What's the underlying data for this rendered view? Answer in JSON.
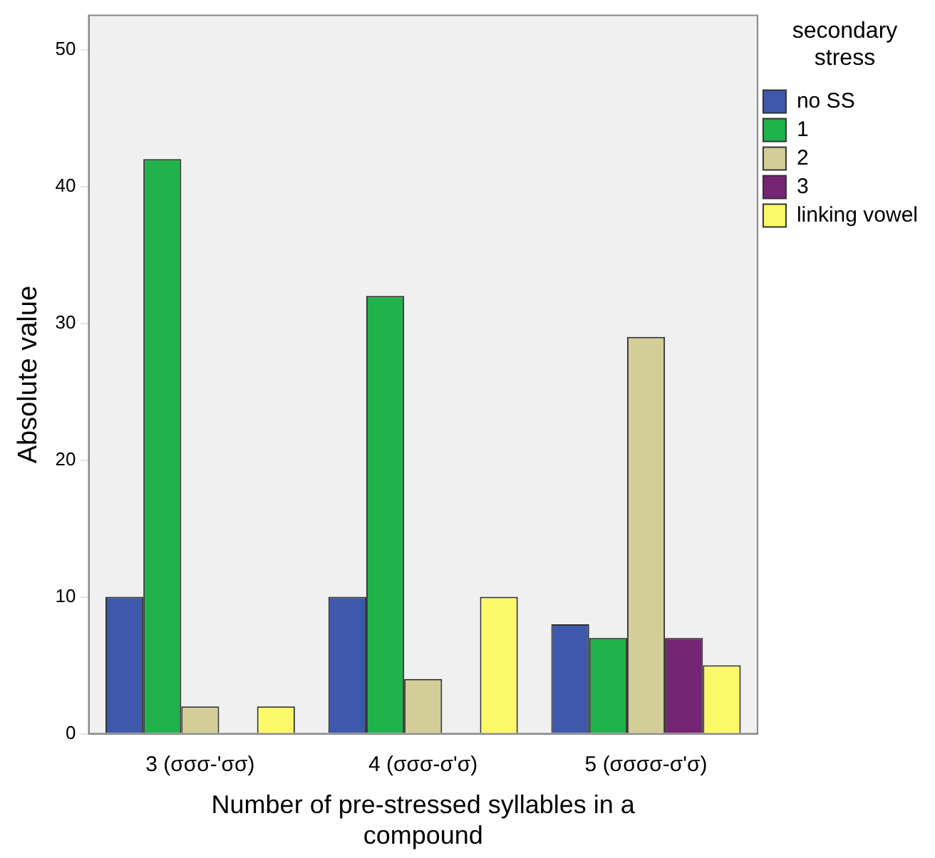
{
  "chart_data": {
    "type": "bar",
    "xlabel": "Number of pre-stressed syllables in a compound",
    "ylabel": "Absolute value",
    "legend_title": "secondary stress",
    "legend": "right",
    "categories": [
      "3 (σσσ-'σσ)",
      "4 (σσσ-σ'σ)",
      "5 (σσσσ-σ'σ)"
    ],
    "series": [
      {
        "name": "no SS",
        "color": "#3e58ac",
        "values": [
          10,
          10,
          8
        ]
      },
      {
        "name": "1",
        "color": "#21b24b",
        "values": [
          42,
          32,
          7
        ]
      },
      {
        "name": "2",
        "color": "#d3ce97",
        "values": [
          2,
          4,
          29
        ]
      },
      {
        "name": "3",
        "color": "#752473",
        "values": [
          null,
          null,
          7
        ]
      },
      {
        "name": "linking vowel",
        "color": "#fbf869",
        "values": [
          2,
          10,
          5
        ]
      }
    ],
    "ylim": [
      0,
      52.5
    ],
    "yticks": [
      0,
      10,
      20,
      30,
      40,
      50
    ],
    "grid": false
  }
}
